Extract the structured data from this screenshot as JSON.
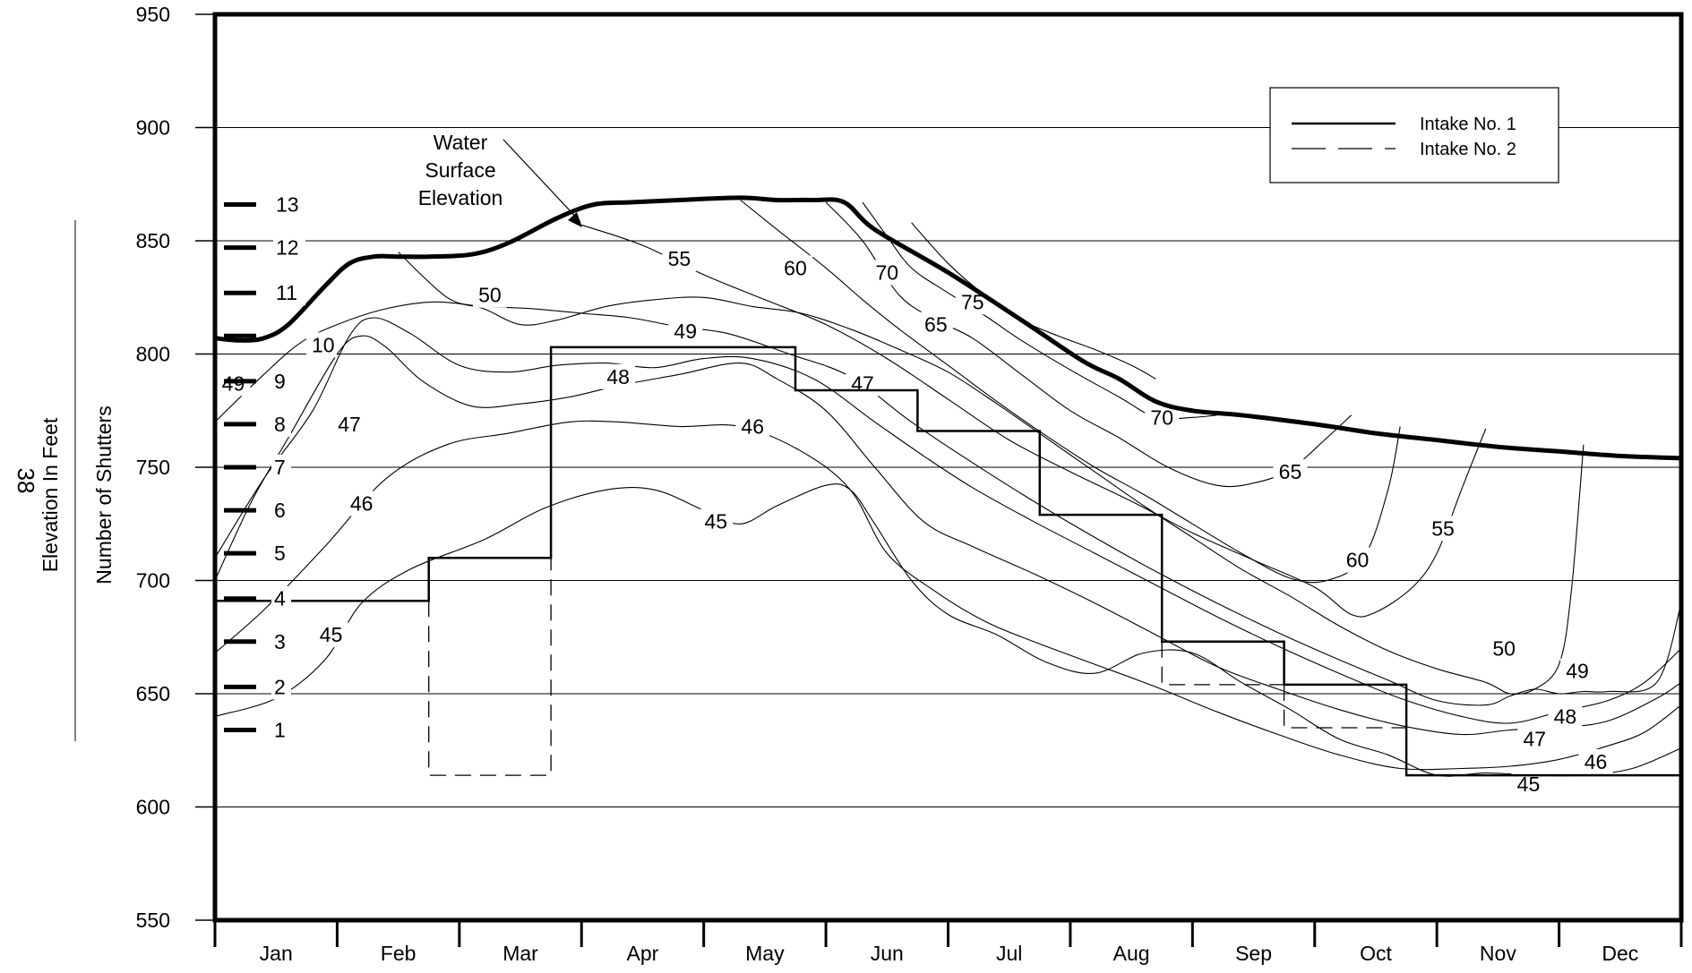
{
  "page_number": "38",
  "chart_data": {
    "type": "line",
    "title": "",
    "xlabel": "",
    "ylabel": "Elevation In Feet",
    "ylabel2": "Number of Shutters",
    "ylim": [
      550,
      950
    ],
    "yticks": [
      550,
      600,
      650,
      700,
      750,
      800,
      850,
      900,
      950
    ],
    "xlim": [
      0,
      12
    ],
    "months": [
      "Jan",
      "Feb",
      "Mar",
      "Apr",
      "May",
      "Jun",
      "Jul",
      "Aug",
      "Sep",
      "Oct",
      "Nov",
      "Dec"
    ],
    "grid": true,
    "legend": {
      "position": "top-right",
      "entries": [
        {
          "name": "Intake No. 1",
          "style": "solid"
        },
        {
          "name": "Intake No. 2",
          "style": "dashed"
        }
      ]
    },
    "annotation": [
      "Water",
      "Surface",
      "Elevation"
    ],
    "water_surface": {
      "x": [
        0,
        0.2,
        0.4,
        0.6,
        0.9,
        1.1,
        1.3,
        1.5,
        1.75,
        2.1,
        2.4,
        2.8,
        3.1,
        3.4,
        3.8,
        4.3,
        4.6,
        4.9,
        5.15,
        5.4,
        6.0,
        6.6,
        7.1,
        7.4,
        7.7,
        8.0,
        8.4,
        9.0,
        9.5,
        10.0,
        10.5,
        11.0,
        11.5,
        12.0
      ],
      "y": [
        807,
        806,
        807,
        813,
        830,
        840,
        843,
        843,
        843,
        844,
        849,
        860,
        866,
        867,
        868,
        869,
        868,
        868,
        867,
        855,
        836,
        815,
        797,
        789,
        779,
        775,
        773,
        769,
        765,
        762,
        759,
        757,
        755,
        754
      ]
    },
    "shutter_levels": [
      {
        "label": "1",
        "elevation": 634
      },
      {
        "label": "2",
        "elevation": 653
      },
      {
        "label": "3",
        "elevation": 673
      },
      {
        "label": "4",
        "elevation": 692
      },
      {
        "label": "5",
        "elevation": 712
      },
      {
        "label": "6",
        "elevation": 731
      },
      {
        "label": "7",
        "elevation": 750
      },
      {
        "label": "8",
        "elevation": 769
      },
      {
        "label": "9",
        "elevation": 788
      },
      {
        "label": "10",
        "elevation": 808
      },
      {
        "label": "11",
        "elevation": 827
      },
      {
        "label": "12",
        "elevation": 847
      },
      {
        "label": "13",
        "elevation": 866
      }
    ],
    "intake_no_1": {
      "x": [
        0,
        1.75,
        1.75,
        2.75,
        2.75,
        4.75,
        4.75,
        5.75,
        5.75,
        6.75,
        6.75,
        7.75,
        7.75,
        8.75,
        8.75,
        9.75,
        9.75,
        12.0
      ],
      "y": [
        691,
        691,
        710,
        710,
        803,
        803,
        784,
        784,
        766,
        766,
        729,
        729,
        673,
        673,
        654,
        654,
        614,
        614
      ]
    },
    "intake_no_2_segments": [
      {
        "x": [
          1.75,
          1.75,
          2.75,
          2.75
        ],
        "y": [
          691,
          614,
          614,
          710
        ]
      },
      {
        "x": [
          7.75,
          7.75,
          8.75
        ],
        "y": [
          673,
          654,
          654
        ]
      },
      {
        "x": [
          8.75,
          8.75,
          9.75
        ],
        "y": [
          654,
          635,
          635
        ]
      }
    ],
    "isotherms": [
      {
        "label": "45",
        "x": [
          0,
          0.5,
          0.9,
          1.2,
          1.6,
          2.2,
          2.7,
          3.2,
          3.6,
          4.0,
          4.3,
          4.6,
          5.0,
          5.2,
          5.4,
          5.7,
          6.0,
          6.4,
          6.8,
          7.2,
          7.6,
          8.0,
          8.4,
          8.8,
          9.2,
          9.6,
          10.0,
          10.4,
          10.8,
          11.2,
          11.6,
          12.0
        ],
        "y": [
          640,
          648,
          665,
          690,
          705,
          718,
          732,
          740,
          740,
          731,
          725,
          733,
          742,
          740,
          725,
          700,
          685,
          676,
          664,
          659,
          668,
          668,
          655,
          643,
          630,
          623,
          614,
          615,
          614,
          614,
          617,
          626
        ],
        "labels": [
          {
            "x": 0.95,
            "y": 676
          },
          {
            "x": 4.1,
            "y": 726
          },
          {
            "x": 10.75,
            "y": 610
          }
        ]
      },
      {
        "label": "46",
        "x": [
          0,
          0.4,
          0.9,
          1.4,
          1.9,
          2.4,
          2.9,
          3.3,
          3.8,
          4.3,
          4.8,
          5.2,
          5.5,
          5.9,
          6.3,
          6.7,
          7.2,
          7.7,
          8.2,
          8.7,
          9.2,
          9.7,
          10.2,
          10.6,
          11.0,
          11.4,
          11.7,
          12.0
        ],
        "y": [
          668,
          687,
          715,
          745,
          760,
          765,
          770,
          770,
          768,
          768,
          757,
          740,
          712,
          695,
          682,
          673,
          663,
          653,
          642,
          632,
          623,
          617,
          617,
          618,
          621,
          627,
          633,
          645
        ],
        "labels": [
          {
            "x": 1.2,
            "y": 734
          },
          {
            "x": 4.4,
            "y": 768
          },
          {
            "x": 11.3,
            "y": 620
          }
        ]
      },
      {
        "label": "47",
        "x": [
          0,
          0.3,
          0.6,
          1.0,
          1.2,
          1.4,
          1.7,
          2.1,
          2.5,
          2.9,
          3.3,
          3.8,
          4.3,
          4.6,
          5.0,
          5.4,
          5.8,
          6.2,
          6.7,
          7.2,
          7.7,
          8.2,
          8.7,
          9.2,
          9.7,
          10.2,
          10.6,
          11.0,
          11.4,
          11.8,
          12.0
        ],
        "y": [
          700,
          735,
          763,
          800,
          808,
          803,
          788,
          777,
          778,
          781,
          786,
          791,
          796,
          789,
          775,
          750,
          726,
          715,
          703,
          690,
          676,
          662,
          652,
          643,
          636,
          632,
          634,
          635,
          638,
          648,
          655
        ],
        "labels": [
          {
            "x": 1.1,
            "y": 769
          },
          {
            "x": 5.3,
            "y": 787
          },
          {
            "x": 10.8,
            "y": 630
          }
        ]
      },
      {
        "label": "48",
        "x": [
          0,
          0.4,
          0.8,
          1.1,
          1.3,
          1.6,
          2.0,
          2.4,
          2.8,
          3.2,
          3.6,
          4.0,
          4.4,
          4.9,
          5.4,
          5.8,
          6.2,
          6.7,
          7.2,
          7.7,
          8.2,
          8.7,
          9.2,
          9.7,
          10.2,
          10.6,
          11.0,
          11.4,
          11.7,
          12.0
        ],
        "y": [
          710,
          745,
          775,
          808,
          816,
          809,
          795,
          792,
          795,
          796,
          794,
          798,
          798,
          789,
          770,
          755,
          741,
          726,
          712,
          698,
          684,
          671,
          659,
          648,
          640,
          637,
          642,
          647,
          655,
          670
        ],
        "labels": [
          {
            "x": 3.3,
            "y": 790
          },
          {
            "x": 11.05,
            "y": 640
          }
        ]
      },
      {
        "label": "49",
        "x": [
          0,
          0.4,
          0.7,
          1.0,
          1.4,
          1.8,
          2.2,
          2.6,
          3.0,
          3.4,
          3.8,
          4.2,
          4.7,
          5.2,
          5.7,
          6.2,
          6.7,
          7.2,
          7.7,
          8.2,
          8.7,
          9.2,
          9.6,
          10.0,
          10.4,
          10.6,
          10.8,
          11.0,
          11.2,
          11.4,
          11.8,
          12.0
        ],
        "y": [
          770,
          791,
          805,
          813,
          820,
          823,
          821,
          820,
          818,
          816,
          812,
          809,
          800,
          790,
          770,
          752,
          735,
          719,
          704,
          690,
          677,
          665,
          656,
          647,
          645,
          649,
          652,
          650,
          651,
          651,
          655,
          690
        ],
        "labels": [
          {
            "x": 0.15,
            "y": 787
          },
          {
            "x": 3.85,
            "y": 810
          },
          {
            "x": 11.15,
            "y": 660
          }
        ]
      },
      {
        "label": "50",
        "x": [
          1.5,
          1.9,
          2.2,
          2.5,
          2.8,
          3.2,
          3.6,
          4.0,
          4.4,
          4.8,
          5.2,
          5.6,
          6.0,
          6.4,
          6.8,
          7.2,
          7.6,
          8.0,
          8.4,
          8.8,
          9.2,
          9.6,
          10.0,
          10.4,
          10.6,
          10.8,
          11.0,
          11.1,
          11.2
        ],
        "y": [
          845,
          825,
          820,
          813,
          815,
          821,
          824,
          825,
          821,
          818,
          811,
          802,
          792,
          778,
          763,
          748,
          733,
          719,
          705,
          693,
          680,
          669,
          661,
          655,
          650,
          652,
          663,
          695,
          760
        ],
        "labels": [
          {
            "x": 2.25,
            "y": 826
          },
          {
            "x": 10.55,
            "y": 670
          }
        ]
      },
      {
        "label": "55",
        "x": [
          3.0,
          3.5,
          4.0,
          4.5,
          5.0,
          5.5,
          6.0,
          6.5,
          7.0,
          7.5,
          8.0,
          8.5,
          9.0,
          9.3,
          9.5,
          9.8,
          10.0,
          10.2,
          10.4
        ],
        "y": [
          857,
          848,
          835,
          824,
          813,
          798,
          780,
          762,
          748,
          735,
          721,
          709,
          697,
          685,
          686,
          697,
          712,
          740,
          767
        ],
        "labels": [
          {
            "x": 3.8,
            "y": 842
          },
          {
            "x": 10.05,
            "y": 723
          }
        ]
      },
      {
        "label": "60",
        "x": [
          4.3,
          4.6,
          5.0,
          5.3,
          5.6,
          6.0,
          6.4,
          6.8,
          7.2,
          7.6,
          8.0,
          8.4,
          8.8,
          9.1,
          9.4,
          9.6,
          9.7
        ],
        "y": [
          868,
          855,
          838,
          824,
          811,
          795,
          779,
          764,
          750,
          738,
          725,
          712,
          701,
          700,
          710,
          740,
          768
        ],
        "labels": [
          {
            "x": 4.75,
            "y": 838
          },
          {
            "x": 9.35,
            "y": 709
          }
        ]
      },
      {
        "label": "65",
        "x": [
          5.0,
          5.3,
          5.6,
          5.9,
          6.2,
          6.6,
          7.0,
          7.4,
          7.8,
          8.2,
          8.5,
          8.8,
          9.1,
          9.3
        ],
        "y": [
          867,
          850,
          826,
          815,
          807,
          791,
          775,
          763,
          750,
          742,
          743,
          749,
          763,
          773
        ],
        "labels": [
          {
            "x": 5.9,
            "y": 813
          },
          {
            "x": 8.8,
            "y": 748
          }
        ]
      },
      {
        "label": "70",
        "x": [
          5.3,
          5.5,
          5.7,
          6.0,
          6.3,
          6.6,
          7.0,
          7.4,
          7.7,
          8.0,
          8.2
        ],
        "y": [
          867,
          852,
          838,
          827,
          817,
          806,
          793,
          781,
          772,
          772,
          773
        ],
        "labels": [
          {
            "x": 5.5,
            "y": 836
          },
          {
            "x": 7.75,
            "y": 772
          }
        ]
      },
      {
        "label": "75",
        "x": [
          5.7,
          6.0,
          6.3,
          6.6,
          6.9,
          7.2,
          7.5,
          7.7
        ],
        "y": [
          858,
          840,
          826,
          815,
          808,
          802,
          795,
          789
        ],
        "labels": [
          {
            "x": 6.2,
            "y": 823
          }
        ]
      }
    ]
  }
}
